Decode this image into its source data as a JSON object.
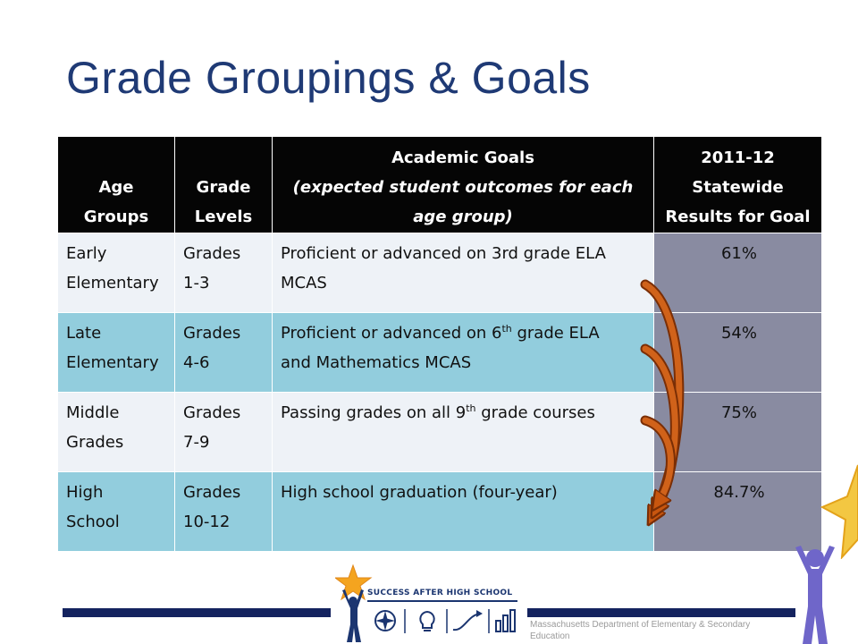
{
  "slide": {
    "title": "Grade Groupings & Goals"
  },
  "table": {
    "headers": {
      "age": [
        "Age",
        "Groups"
      ],
      "grade": [
        "Grade",
        "Levels"
      ],
      "goals": {
        "line1": "Academic Goals",
        "line2": "(expected student outcomes for each",
        "line3": "age group)"
      },
      "results": [
        "2011-12",
        "Statewide",
        "Results  for Goal"
      ]
    },
    "rows": [
      {
        "age": [
          "Early",
          "Elementary"
        ],
        "grade": [
          "Grades",
          "1-3"
        ],
        "goal_line1": "Proficient or advanced on 3rd grade ELA",
        "goal_line2": "MCAS",
        "result": "61%"
      },
      {
        "age": [
          "Late",
          "Elementary"
        ],
        "grade": [
          "Grades",
          "4-6"
        ],
        "goal_pre": "Proficient or advanced on 6",
        "goal_sup": "th",
        "goal_post": " grade ELA",
        "goal_line2": "and Mathematics MCAS",
        "result": "54%"
      },
      {
        "age": [
          "Middle",
          "Grades"
        ],
        "grade": [
          "Grades",
          "7-9"
        ],
        "goal_pre": "Passing grades on all 9",
        "goal_sup": "th",
        "goal_post": " grade courses",
        "result": "75%"
      },
      {
        "age": [
          "High",
          "School"
        ],
        "grade": [
          "Grades",
          "10-12"
        ],
        "goal_line1": "High school graduation (four-year)",
        "result": "84.7%"
      }
    ]
  },
  "footer": {
    "logo_text": "SUCCESS AFTER HIGH SCHOOL",
    "department": "Massachusetts Department of Elementary & Secondary Education"
  },
  "colors": {
    "title": "#1f3a75",
    "header_bg": "#050505",
    "row_light": "#eef2f7",
    "row_blue": "#92cddd",
    "result_bg": "#898ba1",
    "arrow": "#c8560f",
    "navy_bar": "#14235f"
  },
  "icons": [
    "star-icon",
    "person-icon",
    "compass-icon",
    "lightbulb-icon",
    "arrow-curve-icon",
    "bar-chart-icon"
  ]
}
